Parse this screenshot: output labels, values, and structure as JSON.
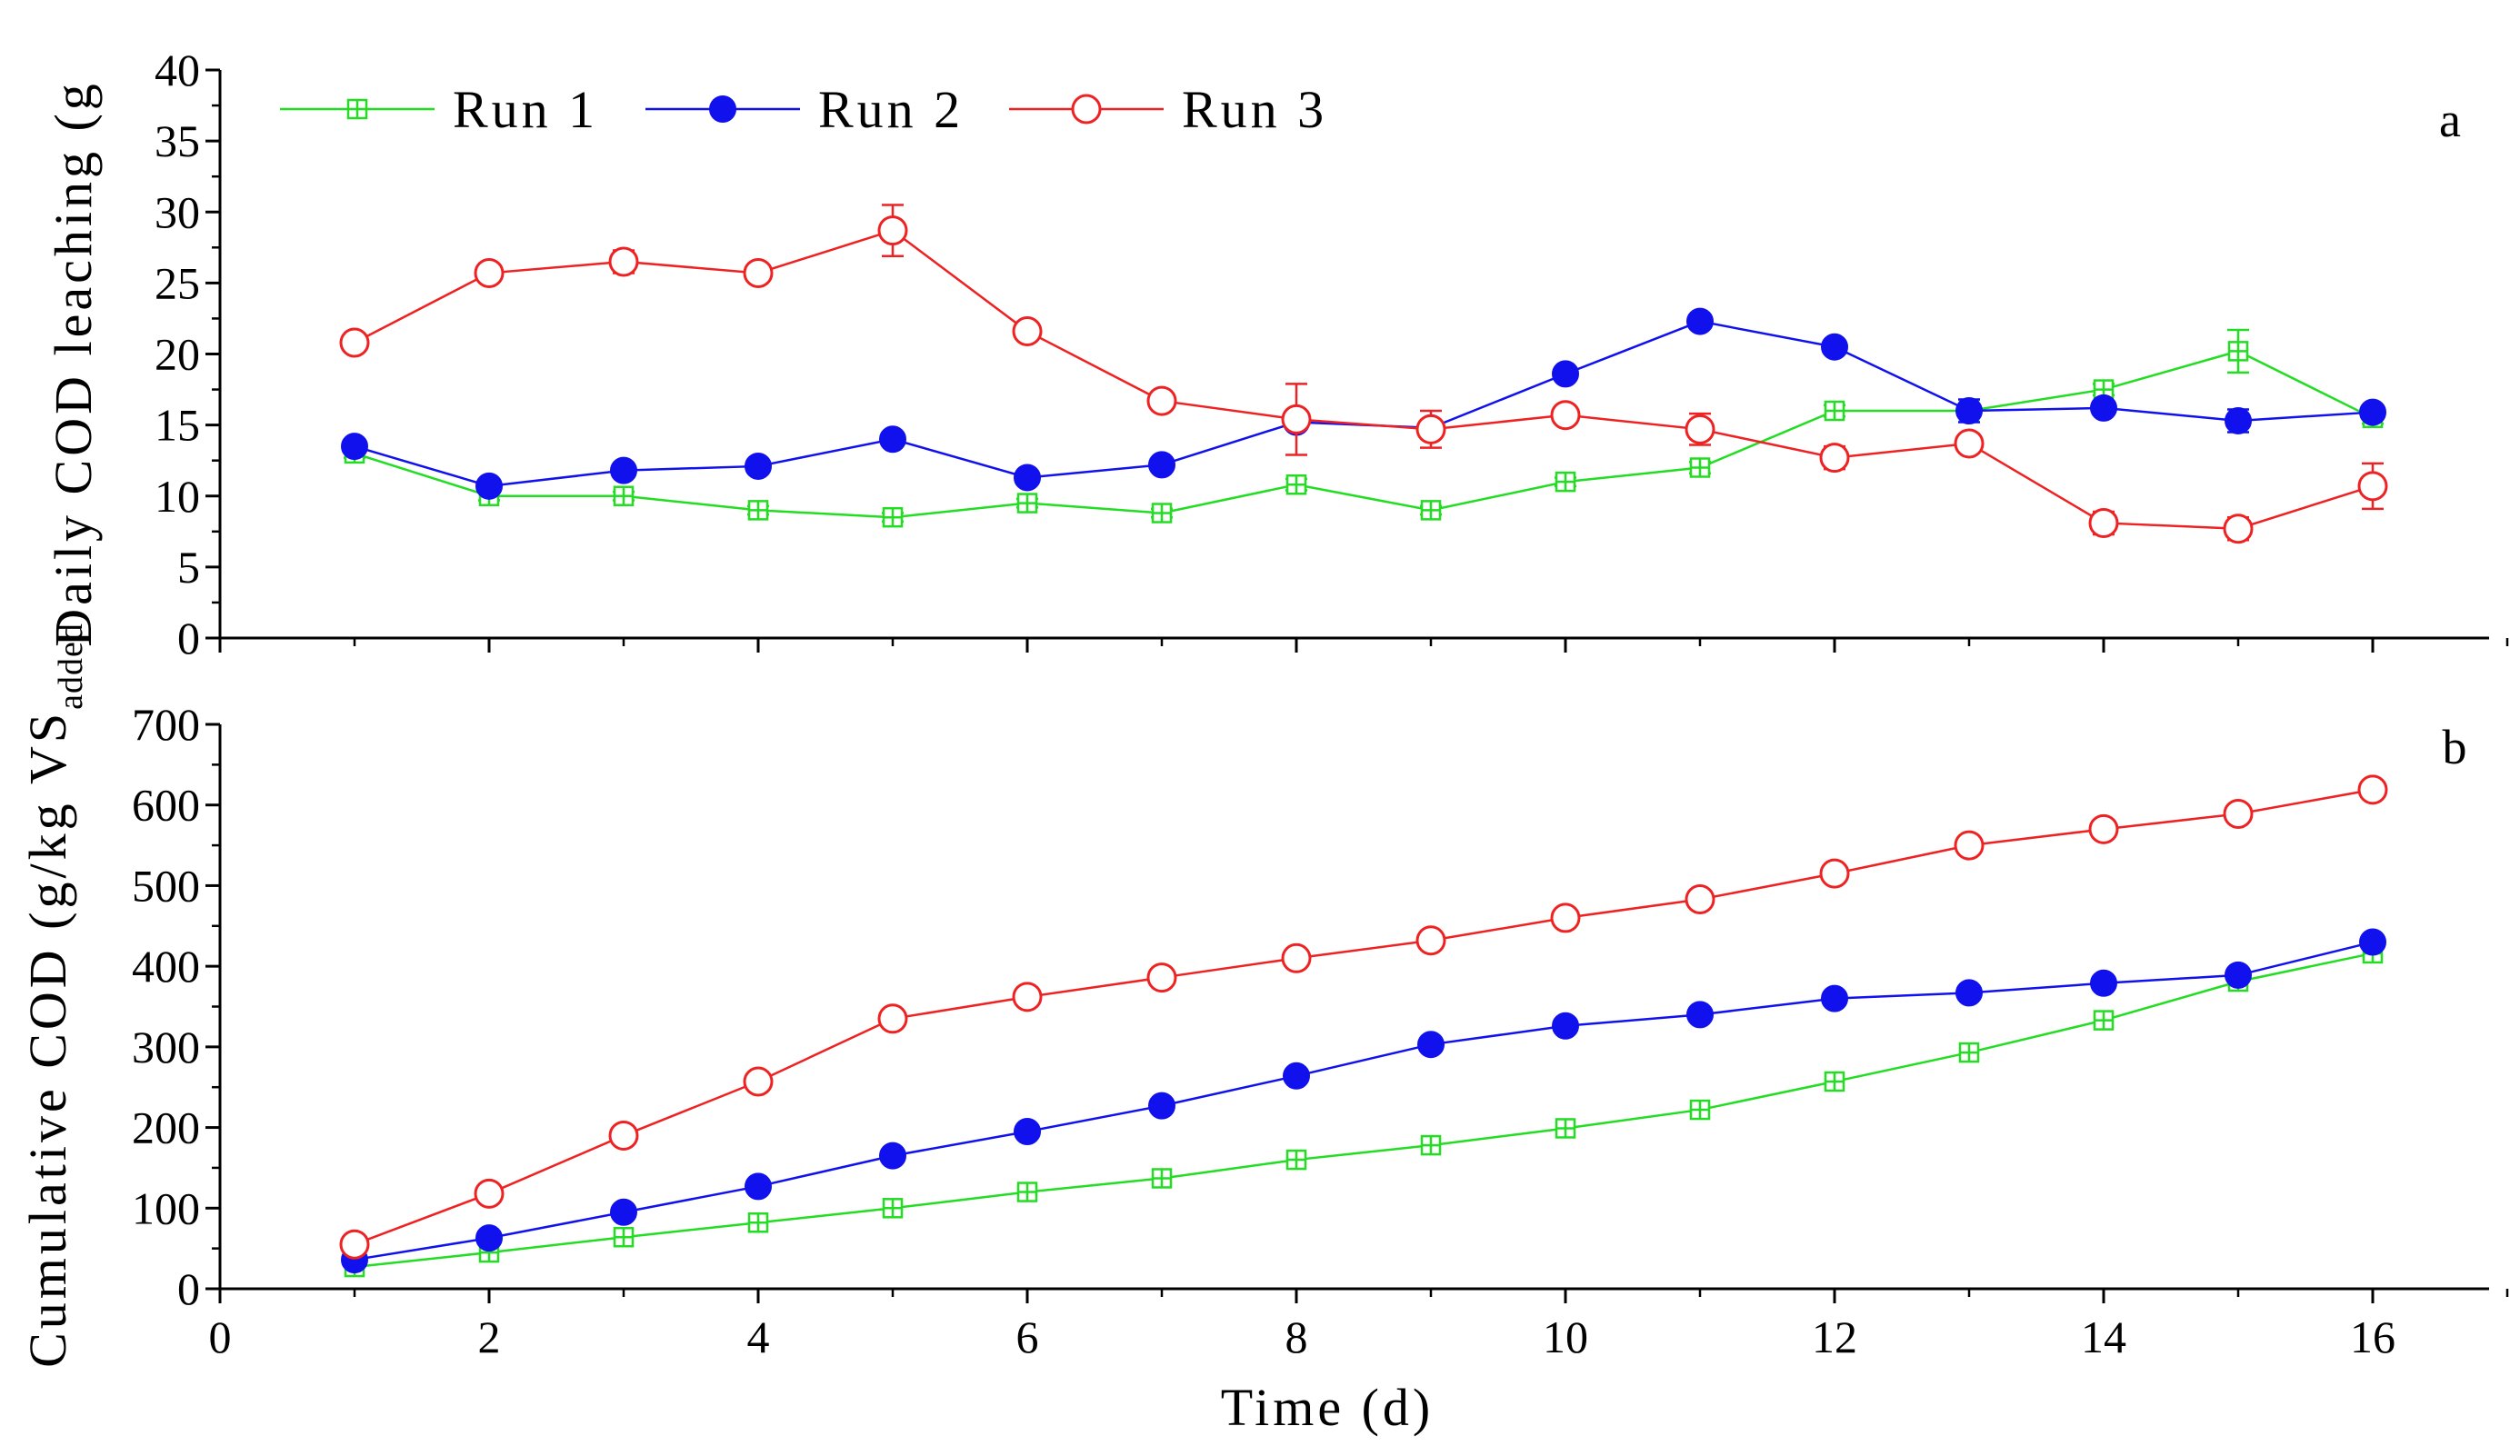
{
  "chart_data": [
    {
      "panel": "a",
      "type": "line",
      "ylabel": "Daily COD leaching (g",
      "xlabel": "",
      "xlim": [
        0,
        17
      ],
      "ylim": [
        0,
        40
      ],
      "yticks": [
        0,
        5,
        10,
        15,
        20,
        25,
        30,
        35,
        40
      ],
      "x": [
        1,
        2,
        3,
        4,
        5,
        6,
        7,
        8,
        9,
        10,
        11,
        12,
        13,
        14,
        15,
        16
      ],
      "series": [
        {
          "name": "Run 1",
          "color": "#22dd22",
          "marker": "square-plus",
          "values": [
            13,
            10,
            10,
            9,
            8.5,
            9.5,
            8.8,
            10.8,
            9,
            11,
            12,
            16,
            16,
            17.5,
            20.2,
            15.5
          ],
          "errors": [
            0.3,
            0.3,
            0.3,
            0.3,
            0.3,
            0.3,
            0.3,
            0.4,
            0.3,
            0.3,
            0.4,
            0.4,
            0.4,
            0.4,
            1.5,
            0.4
          ]
        },
        {
          "name": "Run 2",
          "color": "#1111ee",
          "marker": "filled-circle",
          "values": [
            13.5,
            10.7,
            11.8,
            12.1,
            14,
            11.3,
            12.2,
            15.2,
            14.8,
            18.6,
            22.3,
            20.5,
            16,
            16.2,
            15.3,
            15.9
          ],
          "errors": [
            0.4,
            0.3,
            0.3,
            0.3,
            0.4,
            0.3,
            0.3,
            0.3,
            0.3,
            0.3,
            0.4,
            0.3,
            0.8,
            0.4,
            0.8,
            0.4
          ]
        },
        {
          "name": "Run 3",
          "color": "#ee2222",
          "marker": "open-circle",
          "values": [
            20.8,
            25.7,
            26.5,
            25.7,
            28.7,
            21.6,
            16.7,
            15.4,
            14.7,
            15.7,
            14.7,
            12.7,
            13.7,
            8.1,
            7.7,
            10.7
          ],
          "errors": [
            0.4,
            0.5,
            0.8,
            0.4,
            1.8,
            0.4,
            0.3,
            2.5,
            1.3,
            0.4,
            1.1,
            0.8,
            0.5,
            0.8,
            0.8,
            1.6
          ]
        }
      ],
      "legend": [
        "Run 1",
        "Run 2",
        "Run 3"
      ]
    },
    {
      "panel": "b",
      "type": "line",
      "ylabel": "Cumulative COD (g/kg VS",
      "ylabel_sub": "added",
      "xlabel": "Time (d)",
      "xlim": [
        0,
        17
      ],
      "ylim": [
        0,
        700
      ],
      "yticks": [
        0,
        100,
        200,
        300,
        400,
        500,
        600,
        700
      ],
      "xticks": [
        0,
        2,
        4,
        6,
        8,
        10,
        12,
        14,
        16
      ],
      "x": [
        1,
        2,
        3,
        4,
        5,
        6,
        7,
        8,
        9,
        10,
        11,
        12,
        13,
        14,
        15,
        16
      ],
      "series": [
        {
          "name": "Run 1",
          "color": "#22dd22",
          "marker": "square-plus",
          "values": [
            27,
            45,
            64,
            82,
            100,
            120,
            137,
            160,
            178,
            199,
            222,
            257,
            293,
            333,
            381,
            416
          ]
        },
        {
          "name": "Run 2",
          "color": "#1111ee",
          "marker": "filled-circle",
          "values": [
            36,
            63,
            95,
            127,
            165,
            195,
            227,
            264,
            303,
            326,
            340,
            360,
            367,
            379,
            389,
            430
          ]
        },
        {
          "name": "Run 3",
          "color": "#ee2222",
          "marker": "open-circle",
          "values": [
            55,
            118,
            190,
            257,
            335,
            362,
            386,
            410,
            432,
            460,
            483,
            515,
            550,
            570,
            589,
            619
          ]
        }
      ]
    }
  ]
}
